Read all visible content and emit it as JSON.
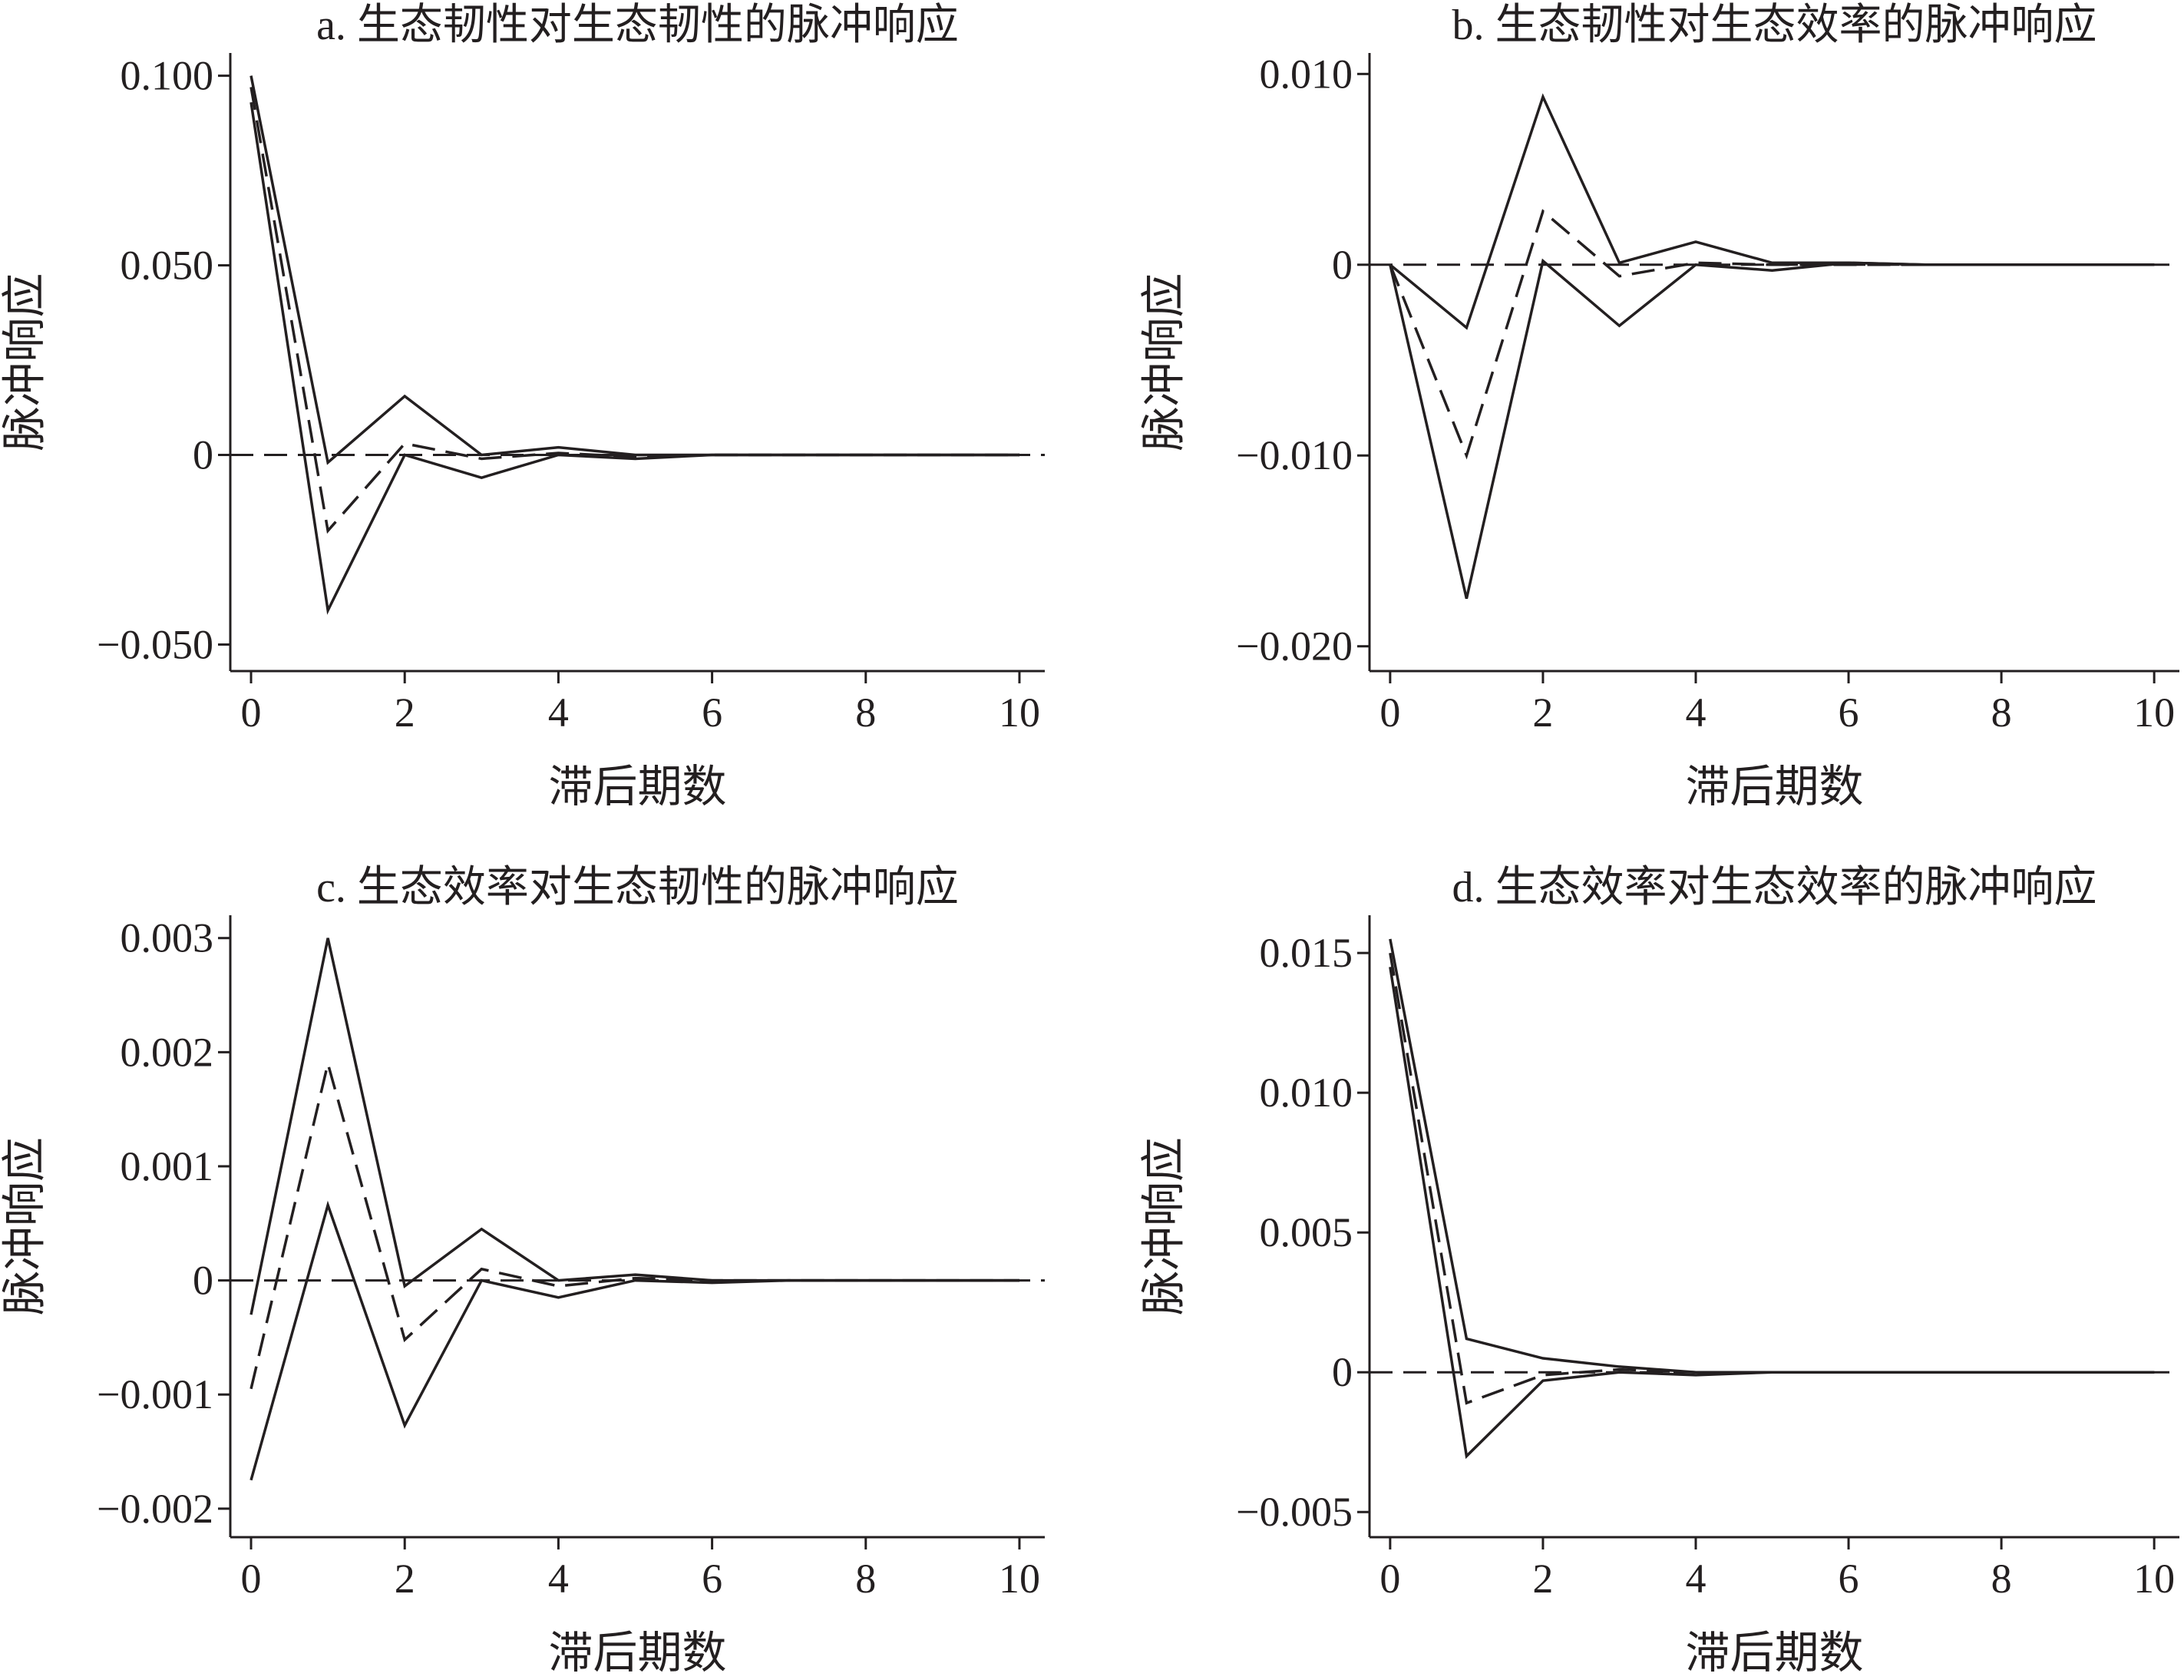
{
  "chart_data": [
    {
      "type": "line",
      "title": "a. 生态韧性对生态韧性的脉冲响应",
      "xlabel": "滞后期数",
      "ylabel": "脉冲响应",
      "x": [
        0,
        1,
        2,
        3,
        4,
        5,
        6,
        7,
        8,
        9,
        10
      ],
      "xlim": [
        -0.27,
        10.33
      ],
      "xticks": [
        0,
        2,
        4,
        6,
        8,
        10
      ],
      "ylim": [
        -0.057,
        0.106
      ],
      "yticks": [
        {
          "value": -0.05,
          "label": "−0.050"
        },
        0,
        {
          "value": 0.05,
          "label": "0.050"
        },
        {
          "value": 0.1,
          "label": "0.100"
        }
      ],
      "hline": 0,
      "series": [
        {
          "color": "#231f20",
          "dash": "solid",
          "values": [
            0.1,
            -0.002,
            0.0155,
            0.0,
            0.002,
            0.0,
            0.0,
            0.0,
            0.0,
            0.0,
            0.0
          ]
        },
        {
          "color": "#231f20",
          "dash": "dashed",
          "values": [
            0.097,
            -0.02,
            0.003,
            -0.001,
            0.0005,
            -0.0005,
            0.0,
            0.0,
            0.0,
            0.0,
            0.0
          ]
        },
        {
          "color": "#231f20",
          "dash": "solid",
          "values": [
            0.093,
            -0.041,
            0.0,
            -0.006,
            0.0,
            -0.001,
            0.0,
            0.0,
            0.0,
            0.0,
            0.0
          ]
        }
      ]
    },
    {
      "type": "line",
      "title": "b. 生态韧性对生态效率的脉冲响应",
      "xlabel": "滞后期数",
      "ylabel": "脉冲响应",
      "x": [
        0,
        1,
        2,
        3,
        4,
        5,
        6,
        7,
        8,
        9,
        10
      ],
      "xlim": [
        -0.27,
        10.33
      ],
      "xticks": [
        0,
        2,
        4,
        6,
        8,
        10
      ],
      "ylim": [
        -0.0213,
        0.0111
      ],
      "yticks": [
        {
          "value": -0.02,
          "label": "−0.020"
        },
        {
          "value": -0.01,
          "label": "−0.010"
        },
        0,
        {
          "value": 0.01,
          "label": "0.010"
        }
      ],
      "hline": 0,
      "series": [
        {
          "color": "#231f20",
          "dash": "solid",
          "values": [
            0.0,
            -0.0033,
            0.0088,
            0.0001,
            0.0012,
            0.0001,
            0.0001,
            0.0,
            0.0,
            0.0,
            0.0
          ]
        },
        {
          "color": "#231f20",
          "dash": "dashed",
          "values": [
            0.0,
            -0.01,
            0.0028,
            -0.0006,
            0.0001,
            0.0,
            0.0,
            0.0,
            0.0,
            0.0,
            0.0
          ]
        },
        {
          "color": "#231f20",
          "dash": "solid",
          "values": [
            0.0,
            -0.0175,
            0.0002,
            -0.0032,
            0.0,
            -0.0003,
            0.0001,
            0.0,
            0.0,
            0.0,
            0.0
          ]
        }
      ]
    },
    {
      "type": "line",
      "title": "c. 生态效率对生态韧性的脉冲响应",
      "xlabel": "滞后期数",
      "ylabel": "脉冲响应",
      "x": [
        0,
        1,
        2,
        3,
        4,
        5,
        6,
        7,
        8,
        9,
        10
      ],
      "xlim": [
        -0.27,
        10.33
      ],
      "xticks": [
        0,
        2,
        4,
        6,
        8,
        10
      ],
      "ylim": [
        -0.00225,
        0.0032
      ],
      "yticks": [
        {
          "value": -0.002,
          "label": "−0.002"
        },
        {
          "value": -0.001,
          "label": "−0.001"
        },
        0,
        {
          "value": 0.001,
          "label": "0.001"
        },
        {
          "value": 0.002,
          "label": "0.002"
        },
        {
          "value": 0.003,
          "label": "0.003"
        }
      ],
      "hline": 0,
      "series": [
        {
          "color": "#231f20",
          "dash": "solid",
          "values": [
            -0.0003,
            0.003,
            -5e-05,
            0.00045,
            0.0,
            5e-05,
            0.0,
            0.0,
            0.0,
            0.0,
            0.0
          ]
        },
        {
          "color": "#231f20",
          "dash": "dashed",
          "values": [
            -0.00095,
            0.0019,
            -0.00052,
            0.0001,
            -5e-05,
            2e-05,
            0.0,
            0.0,
            0.0,
            0.0,
            0.0
          ]
        },
        {
          "color": "#231f20",
          "dash": "solid",
          "values": [
            -0.00175,
            0.00066,
            -0.00127,
            0.0,
            -0.00015,
            0.0,
            -2e-05,
            0.0,
            0.0,
            0.0,
            0.0
          ]
        }
      ]
    },
    {
      "type": "line",
      "title": "d. 生态效率对生态效率的脉冲响应",
      "xlabel": "滞后期数",
      "ylabel": "脉冲响应",
      "x": [
        0,
        1,
        2,
        3,
        4,
        5,
        6,
        7,
        8,
        9,
        10
      ],
      "xlim": [
        -0.27,
        10.33
      ],
      "xticks": [
        0,
        2,
        4,
        6,
        8,
        10
      ],
      "ylim": [
        -0.0059,
        0.01635
      ],
      "yticks": [
        {
          "value": -0.005,
          "label": "−0.005"
        },
        0,
        {
          "value": 0.005,
          "label": "0.005"
        },
        {
          "value": 0.01,
          "label": "0.010"
        },
        {
          "value": 0.015,
          "label": "0.015"
        }
      ],
      "hline": 0,
      "series": [
        {
          "color": "#231f20",
          "dash": "solid",
          "values": [
            0.0155,
            0.0012,
            0.0005,
            0.0002,
            0.0,
            0.0,
            0.0,
            0.0,
            0.0,
            0.0,
            0.0
          ]
        },
        {
          "color": "#231f20",
          "dash": "dashed",
          "values": [
            0.015,
            -0.0011,
            -0.0001,
            0.0001,
            0.0,
            0.0,
            0.0,
            0.0,
            0.0,
            0.0,
            0.0
          ]
        },
        {
          "color": "#231f20",
          "dash": "solid",
          "values": [
            0.0145,
            -0.003,
            -0.0003,
            0.0,
            -0.0001,
            0.0,
            0.0,
            0.0,
            0.0,
            0.0,
            0.0
          ]
        }
      ]
    }
  ]
}
